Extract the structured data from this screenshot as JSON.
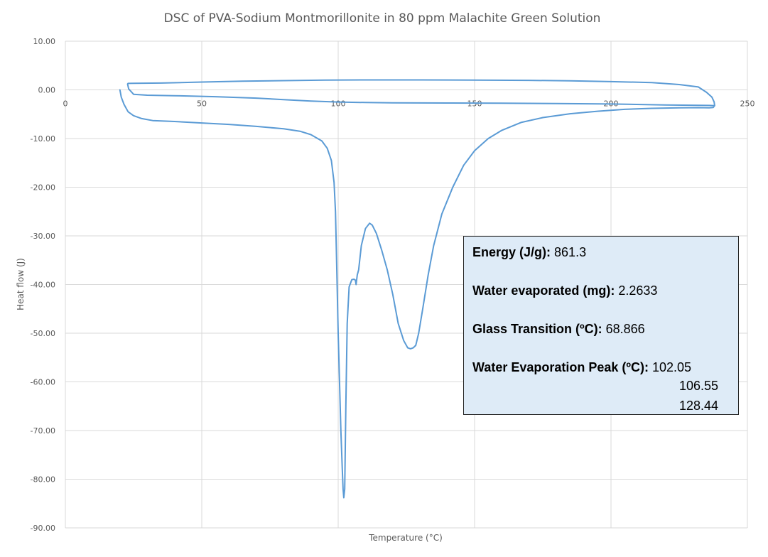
{
  "chart_data": {
    "type": "line",
    "title": "DSC of PVA-Sodium Montmorillonite in 80 ppm Malachite Green Solution",
    "xlabel": "Temperature (°C)",
    "ylabel": "Heat flow (J)",
    "xlim": [
      0,
      250
    ],
    "ylim": [
      -90,
      10
    ],
    "x_ticks": [
      "0",
      "50",
      "100",
      "150",
      "200",
      "250"
    ],
    "y_ticks": [
      "10.00",
      "0.00",
      "-10.00",
      "-20.00",
      "-30.00",
      "-40.00",
      "-50.00",
      "-60.00",
      "-70.00",
      "-80.00",
      "-90.00"
    ],
    "grid": true,
    "legend": "none",
    "series": [
      {
        "color": "#5b9bd5",
        "x": [
          20,
          20.5,
          21.5,
          23,
          25,
          28,
          32,
          40,
          50,
          60,
          70,
          80,
          86,
          90,
          94,
          96,
          97.5,
          98.5,
          99,
          99.3,
          99.6,
          100,
          100.5,
          101,
          101.5,
          101.8,
          102.05,
          102.4,
          102.8,
          103.3,
          104,
          105,
          105.8,
          106.3,
          106.55,
          107,
          107.5,
          108.5,
          110,
          111.5,
          112.5,
          114,
          116,
          118,
          120,
          122,
          124,
          125.5,
          126.5,
          127.5,
          128.44,
          129.5,
          131,
          133,
          135,
          138,
          142,
          146,
          150,
          155,
          160,
          167,
          175,
          185,
          195,
          205,
          215,
          225,
          232,
          236,
          237.5,
          238,
          237.8,
          237,
          235,
          232,
          225,
          215,
          200,
          185,
          170,
          150,
          130,
          110,
          95,
          80,
          65,
          50,
          35,
          25,
          23,
          22.8,
          23.2,
          25,
          30,
          40,
          55,
          70,
          80,
          90,
          100,
          110,
          120,
          140,
          160,
          180,
          200,
          220,
          236,
          238
        ],
        "y": [
          0,
          -1.5,
          -3,
          -4.5,
          -5.3,
          -5.9,
          -6.3,
          -6.5,
          -6.8,
          -7.1,
          -7.5,
          -8,
          -8.5,
          -9.2,
          -10.5,
          -12,
          -14.5,
          -19,
          -25,
          -32,
          -40,
          -50,
          -60,
          -70,
          -78,
          -82,
          -83.8,
          -82,
          -65,
          -48,
          -40.5,
          -39,
          -38.9,
          -39.1,
          -40,
          -38,
          -37,
          -32,
          -28.5,
          -27.4,
          -27.8,
          -29.5,
          -33,
          -37,
          -42,
          -48,
          -51.5,
          -53,
          -53.2,
          -53,
          -52.5,
          -50,
          -45,
          -38,
          -32,
          -25.5,
          -20,
          -15.5,
          -12.5,
          -10,
          -8.3,
          -6.7,
          -5.7,
          -4.9,
          -4.4,
          -4,
          -3.8,
          -3.7,
          -3.65,
          -3.7,
          -3.6,
          -3.2,
          -2.5,
          -1.5,
          -0.5,
          0.6,
          1.1,
          1.5,
          1.7,
          1.85,
          1.95,
          2,
          2.05,
          2.05,
          2,
          1.9,
          1.8,
          1.6,
          1.4,
          1.35,
          1.33,
          1.2,
          0.2,
          -0.9,
          -1.1,
          -1.2,
          -1.4,
          -1.7,
          -2,
          -2.3,
          -2.5,
          -2.6,
          -2.65,
          -2.7,
          -2.75,
          -2.8,
          -2.9,
          -3.1,
          -3.2,
          -3.25
        ]
      }
    ]
  },
  "info_box": {
    "energy_label": "Energy (J/g):",
    "energy_value": "861.3",
    "water_evaporated_label": "Water evaporated (mg):",
    "water_evaporated_value": "2.2633",
    "glass_transition_label": "Glass Transition (ºC):",
    "glass_transition_value": "68.866",
    "water_peak_label": "Water Evaporation Peak (ºC):",
    "water_peak_values": [
      "102.05",
      "106.55",
      "128.44"
    ]
  }
}
